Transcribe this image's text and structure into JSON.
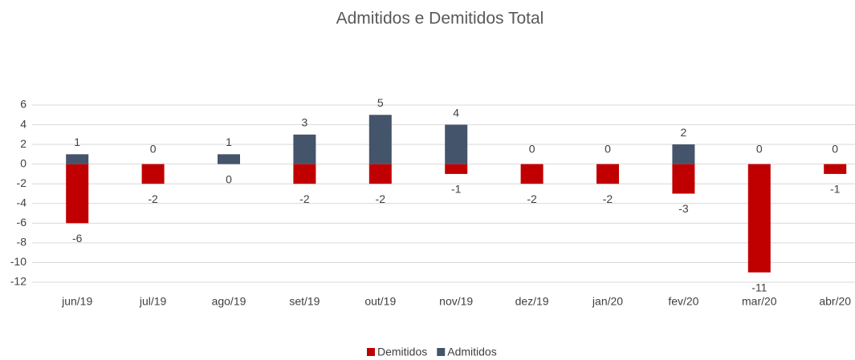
{
  "chart_data": {
    "type": "bar",
    "title": "Admitidos e Demitidos Total",
    "categories": [
      "jun/19",
      "jul/19",
      "ago/19",
      "set/19",
      "out/19",
      "nov/19",
      "dez/19",
      "jan/20",
      "fev/20",
      "mar/20",
      "abr/20"
    ],
    "series": [
      {
        "name": "Demitidos",
        "color": "#c00000",
        "values": [
          -6,
          -2,
          0,
          -2,
          -2,
          -1,
          -2,
          -2,
          -3,
          -11,
          -1
        ]
      },
      {
        "name": "Admitidos",
        "color": "#44546a",
        "values": [
          1,
          0,
          1,
          3,
          5,
          4,
          0,
          0,
          2,
          0,
          0
        ]
      }
    ],
    "ylim": [
      -12,
      6
    ],
    "yticks": [
      -12,
      -10,
      -8,
      -6,
      -4,
      -2,
      0,
      2,
      4,
      6
    ],
    "grid": true,
    "legend": "bottom"
  }
}
